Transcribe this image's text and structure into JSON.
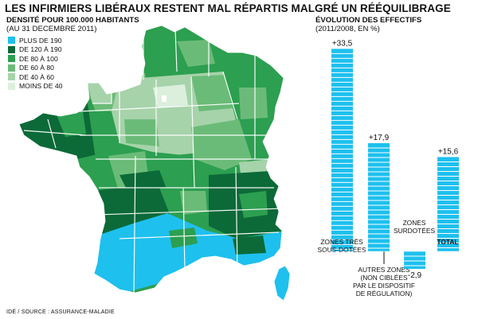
{
  "title": "LES INFIRMIERS LIBÉRAUX RESTENT MAL RÉPARTIS MALGRÉ UN RÉÉQUILIBRAGE",
  "map": {
    "heading": "DENSITÉ POUR 100.000 HABITANTS",
    "subheading": "(AU 31 DECEMBRE 2011)",
    "legend": [
      {
        "label": "PLUS DE 190",
        "color": "#1ec0ee"
      },
      {
        "label": "DE 120 À 190",
        "color": "#0b6a38"
      },
      {
        "label": "DE 80 À 100",
        "color": "#2c9f50"
      },
      {
        "label": "DE 60 À 80",
        "color": "#6bbb78"
      },
      {
        "label": "DE 40 À 60",
        "color": "#a6d3aa"
      },
      {
        "label": "MOINS DE 40",
        "color": "#dcefdd"
      }
    ]
  },
  "chart_data": {
    "type": "bar",
    "title": "ÉVOLUTION DES EFFECTIFS",
    "subtitle": "(2011/2008, EN %)",
    "categories": [
      "ZONES TRÈS SOUS-DOTÉES",
      "AUTRES ZONES (NON CIBLÉES PAR LE DISPOSITIF DE RÉGULATION)",
      "ZONES SURDOTÉES",
      "TOTAL"
    ],
    "values": [
      33.5,
      17.9,
      -2.9,
      15.6
    ],
    "value_labels": [
      "+33,5",
      "+17,9",
      "-2,9",
      "+15,6"
    ],
    "category_label_lines": [
      [
        "ZONES TRÈS",
        "SOUS-DOTÉES"
      ],
      [
        "AUTRES ZONES",
        "(NON CIBLÉES",
        "PAR LE DISPOSITIF",
        "DE RÉGULATION)"
      ],
      [
        "ZONES",
        "SURDOTÉES"
      ],
      [
        "TOTAL"
      ]
    ],
    "bar_color": "#1ec0ee",
    "grid": false
  },
  "footer": "IDÉ / SOURCE : ASSURANCE-MALADIE"
}
